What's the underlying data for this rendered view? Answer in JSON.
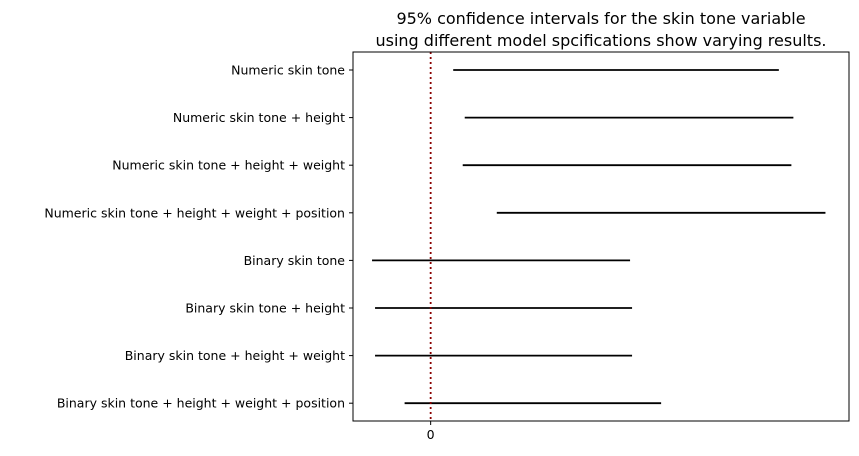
{
  "chart_data": {
    "type": "interval",
    "title_lines": [
      "95% confidence intervals for the skin tone variable",
      "using different model spcifications show varying results."
    ],
    "xlabel": "",
    "ylabel": "",
    "xlim": [
      -0.155,
      0.835
    ],
    "x_ticks": [
      {
        "value": 0,
        "label": "0"
      }
    ],
    "reference_line": {
      "x": 0,
      "color": "#8b0000",
      "style": "dotted"
    },
    "interval_color": "#000000",
    "grid": false,
    "intervals": [
      {
        "label": "Numeric skin tone",
        "low": 0.045,
        "high": 0.695
      },
      {
        "label": "Numeric skin tone + height",
        "low": 0.068,
        "high": 0.724
      },
      {
        "label": "Numeric skin tone + height + weight",
        "low": 0.064,
        "high": 0.72
      },
      {
        "label": "Numeric skin tone + height + weight + position",
        "low": 0.132,
        "high": 0.788
      },
      {
        "label": "Binary skin tone",
        "low": -0.117,
        "high": 0.398
      },
      {
        "label": "Binary skin tone + height",
        "low": -0.111,
        "high": 0.402
      },
      {
        "label": "Binary skin tone + height + weight",
        "low": -0.111,
        "high": 0.402
      },
      {
        "label": "Binary skin tone + height + weight + position",
        "low": -0.052,
        "high": 0.46
      }
    ]
  }
}
